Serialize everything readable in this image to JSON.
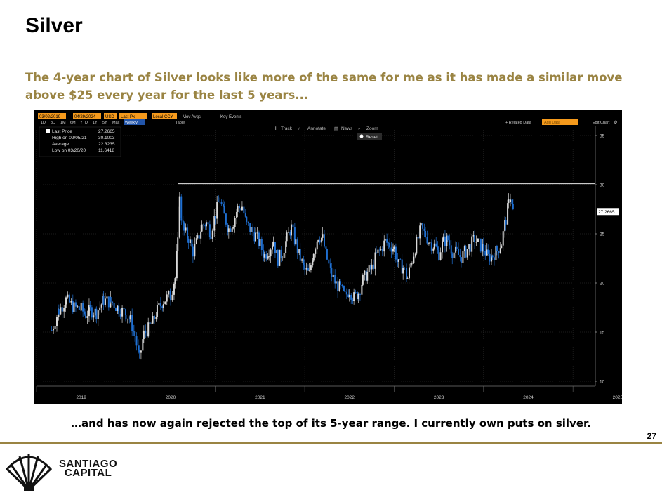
{
  "slide": {
    "title": "Silver",
    "intro": "The 4-year chart of Silver looks like more of the same for me as it has made a similar move above $25 every year for the last 5 years...",
    "caption": "…and has now again rejected the top of its 5-year range.  I currently own puts on silver.",
    "page_number": "27",
    "brand_line1": "SANTIAGO",
    "brand_line2": "CAPITAL"
  },
  "toolbar": {
    "start_date": "03/02/2019",
    "end_date": "04/29/2024",
    "currency": "USD",
    "price_field": "Last Px",
    "ccy": "Local CCY",
    "mov_avgs": "Mov Avgs",
    "key_events": "Key Events",
    "ranges": [
      "1D",
      "3D",
      "1M",
      "6M",
      "YTD",
      "1Y",
      "5Y",
      "Max"
    ],
    "frequency": "Weekly",
    "table": "Table",
    "related_data": "+ Related Data",
    "add_data": "Add Data",
    "edit_chart": "Edit Chart",
    "track": "Track",
    "annotate": "Annotate",
    "news": "News",
    "zoom": "Zoom",
    "reset": "Reset"
  },
  "legend": {
    "last_price_label": "Last Price",
    "last_price_value": "27.2665",
    "high_label": "High on 02/05/21",
    "high_value": "30.1003",
    "average_label": "Average",
    "average_value": "22.3235",
    "low_label": "Low on 03/20/20",
    "low_value": "11.6418"
  },
  "chart_data": {
    "type": "candlestick",
    "title": "",
    "x_tick_labels": [
      "2019",
      "2020",
      "2021",
      "2022",
      "2023",
      "2024",
      "2025"
    ],
    "y_tick_labels": [
      "10",
      "15",
      "20",
      "25",
      "30",
      "35"
    ],
    "ylim": [
      9.5,
      36
    ],
    "last_price_label": "27.2665",
    "resistance_level": 30.1,
    "up_color": "#d9d9d9",
    "down_color": "#1f6fd1",
    "series": [
      {
        "x": [
          2019.17,
          2019.25,
          2019.33,
          2019.42,
          2019.5,
          2019.55,
          2019.6,
          2019.67,
          2019.75,
          2019.83,
          2019.92,
          2020.0,
          2020.05,
          2020.1,
          2020.15,
          2020.2,
          2020.25,
          2020.3,
          2020.35,
          2020.42,
          2020.5,
          2020.55,
          2020.58,
          2020.6,
          2020.62,
          2020.65,
          2020.7,
          2020.75,
          2020.8,
          2020.85,
          2020.9,
          2020.95,
          2021.0,
          2021.05,
          2021.1,
          2021.15,
          2021.2,
          2021.25,
          2021.3,
          2021.35,
          2021.4,
          2021.45,
          2021.5,
          2021.55,
          2021.6,
          2021.65,
          2021.7,
          2021.75,
          2021.8,
          2021.85,
          2021.9,
          2021.95,
          2022.0,
          2022.05,
          2022.1,
          2022.15,
          2022.2,
          2022.25,
          2022.3,
          2022.35,
          2022.4,
          2022.45,
          2022.5,
          2022.55,
          2022.6,
          2022.65,
          2022.7,
          2022.75,
          2022.8,
          2022.85,
          2022.9,
          2022.95,
          2023.0,
          2023.05,
          2023.1,
          2023.15,
          2023.2,
          2023.25,
          2023.3,
          2023.35,
          2023.4,
          2023.45,
          2023.5,
          2023.55,
          2023.6,
          2023.65,
          2023.7,
          2023.75,
          2023.8,
          2023.85,
          2023.9,
          2023.95,
          2024.0,
          2024.05,
          2024.1,
          2024.15,
          2024.2,
          2024.25,
          2024.28,
          2024.3,
          2024.33
        ],
        "close": [
          15.2,
          17.2,
          18.3,
          17.5,
          17.3,
          16.8,
          17.2,
          17.0,
          18.2,
          18.1,
          17.4,
          16.9,
          16.2,
          14.7,
          12.2,
          14.8,
          15.3,
          16.0,
          17.2,
          18.2,
          18.8,
          20.5,
          24.0,
          28.5,
          26.8,
          25.2,
          24.6,
          23.2,
          24.3,
          25.8,
          26.1,
          25.2,
          27.0,
          28.5,
          26.8,
          25.5,
          26.2,
          27.6,
          27.8,
          25.9,
          25.4,
          24.8,
          23.9,
          22.8,
          23.4,
          24.3,
          22.4,
          23.1,
          24.5,
          25.6,
          24.0,
          22.5,
          21.3,
          20.9,
          23.3,
          24.8,
          24.5,
          22.4,
          20.8,
          19.9,
          19.4,
          18.6,
          19.3,
          18.5,
          19.0,
          20.3,
          21.0,
          21.5,
          22.8,
          23.4,
          24.2,
          23.9,
          23.5,
          21.8,
          21.6,
          20.5,
          22.4,
          24.0,
          25.5,
          24.9,
          24.1,
          23.8,
          23.0,
          24.2,
          24.4,
          23.2,
          23.0,
          22.6,
          23.2,
          23.8,
          24.5,
          23.9,
          23.5,
          22.6,
          22.8,
          23.3,
          24.1,
          26.5,
          28.0,
          28.8,
          27.27
        ]
      }
    ]
  }
}
